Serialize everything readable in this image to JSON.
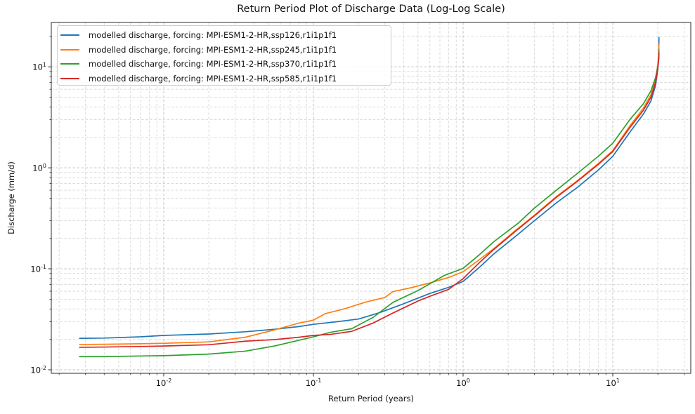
{
  "title": "Return Period Plot of Discharge Data (Log-Log Scale)",
  "axes": {
    "xlabel": "Return Period (years)",
    "ylabel": "Discharge (mm/d)",
    "x_tick_exponents": [
      -2,
      -1,
      0,
      1
    ],
    "y_tick_exponents": [
      -2,
      -1,
      0,
      1
    ],
    "tick_base": "10"
  },
  "legend": {
    "position": "upper left",
    "items": [
      {
        "label": "modelled discharge, forcing: MPI-ESM1-2-HR,ssp126,r1i1p1f1",
        "color": "#1f77b4"
      },
      {
        "label": "modelled discharge, forcing: MPI-ESM1-2-HR,ssp245,r1i1p1f1",
        "color": "#ff7f0e"
      },
      {
        "label": "modelled discharge, forcing: MPI-ESM1-2-HR,ssp370,r1i1p1f1",
        "color": "#2ca02c"
      },
      {
        "label": "modelled discharge, forcing: MPI-ESM1-2-HR,ssp585,r1i1p1f1",
        "color": "#d62728"
      }
    ]
  },
  "colors": {
    "major_grid": "#c3c3c3",
    "minor_grid": "#d6d6d6",
    "spine": "#2b2b2b",
    "tick": "#2b2b2b",
    "background": "#ffffff"
  },
  "chart_data": {
    "type": "line",
    "title": "Return Period Plot of Discharge Data (Log-Log Scale)",
    "xlabel": "Return Period (years)",
    "ylabel": "Discharge (mm/d)",
    "x_scale": "log",
    "y_scale": "log",
    "xlim": [
      0.001773,
      33.2
    ],
    "ylim": [
      0.00923,
      27.5
    ],
    "grid": "both-major-and-minor, dashed",
    "legend_position": "upper left",
    "series": [
      {
        "name": "modelled discharge, forcing: MPI-ESM1-2-HR,ssp126,r1i1p1f1",
        "color": "#1f77b4",
        "points": [
          [
            0.00274,
            0.0205
          ],
          [
            0.004,
            0.0206
          ],
          [
            0.007,
            0.0212
          ],
          [
            0.01,
            0.0219
          ],
          [
            0.02,
            0.0226
          ],
          [
            0.035,
            0.0238
          ],
          [
            0.055,
            0.0252
          ],
          [
            0.08,
            0.0268
          ],
          [
            0.1,
            0.0282
          ],
          [
            0.14,
            0.0298
          ],
          [
            0.2,
            0.0318
          ],
          [
            0.28,
            0.037
          ],
          [
            0.4,
            0.045
          ],
          [
            0.6,
            0.057
          ],
          [
            0.8,
            0.0655
          ],
          [
            1.0,
            0.075
          ],
          [
            1.3,
            0.105
          ],
          [
            1.6,
            0.14
          ],
          [
            2.2,
            0.205
          ],
          [
            3.0,
            0.3
          ],
          [
            4.2,
            0.45
          ],
          [
            5.8,
            0.64
          ],
          [
            8.0,
            0.95
          ],
          [
            10.0,
            1.3
          ],
          [
            13.0,
            2.25
          ],
          [
            16.0,
            3.4
          ],
          [
            18.0,
            4.6
          ],
          [
            19.3,
            6.5
          ],
          [
            20.0,
            9.5
          ],
          [
            20.3,
            13.0
          ],
          [
            20.35,
            19.6
          ]
        ]
      },
      {
        "name": "modelled discharge, forcing: MPI-ESM1-2-HR,ssp245,r1i1p1f1",
        "color": "#ff7f0e",
        "points": [
          [
            0.00274,
            0.0178
          ],
          [
            0.004,
            0.0179
          ],
          [
            0.007,
            0.0181
          ],
          [
            0.01,
            0.0183
          ],
          [
            0.02,
            0.0189
          ],
          [
            0.035,
            0.021
          ],
          [
            0.055,
            0.0248
          ],
          [
            0.08,
            0.029
          ],
          [
            0.1,
            0.031
          ],
          [
            0.12,
            0.036
          ],
          [
            0.16,
            0.04
          ],
          [
            0.22,
            0.0465
          ],
          [
            0.3,
            0.052
          ],
          [
            0.34,
            0.0595
          ],
          [
            0.45,
            0.065
          ],
          [
            0.6,
            0.0725
          ],
          [
            0.8,
            0.082
          ],
          [
            1.0,
            0.0935
          ],
          [
            1.3,
            0.125
          ],
          [
            1.6,
            0.158
          ],
          [
            2.2,
            0.235
          ],
          [
            3.0,
            0.34
          ],
          [
            4.2,
            0.52
          ],
          [
            5.8,
            0.745
          ],
          [
            8.0,
            1.1
          ],
          [
            10.0,
            1.48
          ],
          [
            13.0,
            2.6
          ],
          [
            16.0,
            3.9
          ],
          [
            18.0,
            5.3
          ],
          [
            19.3,
            7.5
          ],
          [
            20.0,
            10.5
          ],
          [
            20.3,
            14.0
          ],
          [
            20.35,
            16.7
          ]
        ]
      },
      {
        "name": "modelled discharge, forcing: MPI-ESM1-2-HR,ssp370,r1i1p1f1",
        "color": "#2ca02c",
        "points": [
          [
            0.00274,
            0.0135
          ],
          [
            0.004,
            0.0135
          ],
          [
            0.007,
            0.0137
          ],
          [
            0.01,
            0.0138
          ],
          [
            0.02,
            0.0143
          ],
          [
            0.035,
            0.0153
          ],
          [
            0.055,
            0.0172
          ],
          [
            0.08,
            0.0196
          ],
          [
            0.1,
            0.0212
          ],
          [
            0.13,
            0.0235
          ],
          [
            0.18,
            0.0255
          ],
          [
            0.25,
            0.033
          ],
          [
            0.34,
            0.0465
          ],
          [
            0.5,
            0.061
          ],
          [
            0.75,
            0.086
          ],
          [
            1.0,
            0.101
          ],
          [
            1.3,
            0.14
          ],
          [
            1.6,
            0.185
          ],
          [
            2.35,
            0.285
          ],
          [
            3.0,
            0.4
          ],
          [
            4.2,
            0.6
          ],
          [
            5.8,
            0.88
          ],
          [
            8.0,
            1.3
          ],
          [
            10.0,
            1.75
          ],
          [
            13.0,
            3.0
          ],
          [
            16.0,
            4.3
          ],
          [
            18.0,
            5.8
          ],
          [
            19.3,
            7.8
          ],
          [
            20.0,
            10.0
          ],
          [
            20.3,
            12.5
          ],
          [
            20.35,
            14.7
          ]
        ]
      },
      {
        "name": "modelled discharge, forcing: MPI-ESM1-2-HR,ssp585,r1i1p1f1",
        "color": "#d62728",
        "points": [
          [
            0.00274,
            0.0167
          ],
          [
            0.004,
            0.0168
          ],
          [
            0.007,
            0.017
          ],
          [
            0.01,
            0.0172
          ],
          [
            0.02,
            0.0177
          ],
          [
            0.035,
            0.0192
          ],
          [
            0.055,
            0.0199
          ],
          [
            0.08,
            0.021
          ],
          [
            0.1,
            0.0219
          ],
          [
            0.13,
            0.0224
          ],
          [
            0.18,
            0.024
          ],
          [
            0.25,
            0.029
          ],
          [
            0.34,
            0.0365
          ],
          [
            0.5,
            0.048
          ],
          [
            0.6,
            0.0535
          ],
          [
            0.8,
            0.0625
          ],
          [
            1.0,
            0.08
          ],
          [
            1.3,
            0.117
          ],
          [
            1.6,
            0.155
          ],
          [
            2.2,
            0.23
          ],
          [
            3.0,
            0.335
          ],
          [
            4.2,
            0.51
          ],
          [
            5.8,
            0.735
          ],
          [
            8.0,
            1.08
          ],
          [
            10.0,
            1.45
          ],
          [
            13.0,
            2.5
          ],
          [
            16.0,
            3.7
          ],
          [
            18.0,
            5.0
          ],
          [
            19.3,
            7.0
          ],
          [
            20.0,
            9.8
          ],
          [
            20.3,
            12.0
          ],
          [
            20.35,
            13.8
          ]
        ]
      }
    ]
  }
}
